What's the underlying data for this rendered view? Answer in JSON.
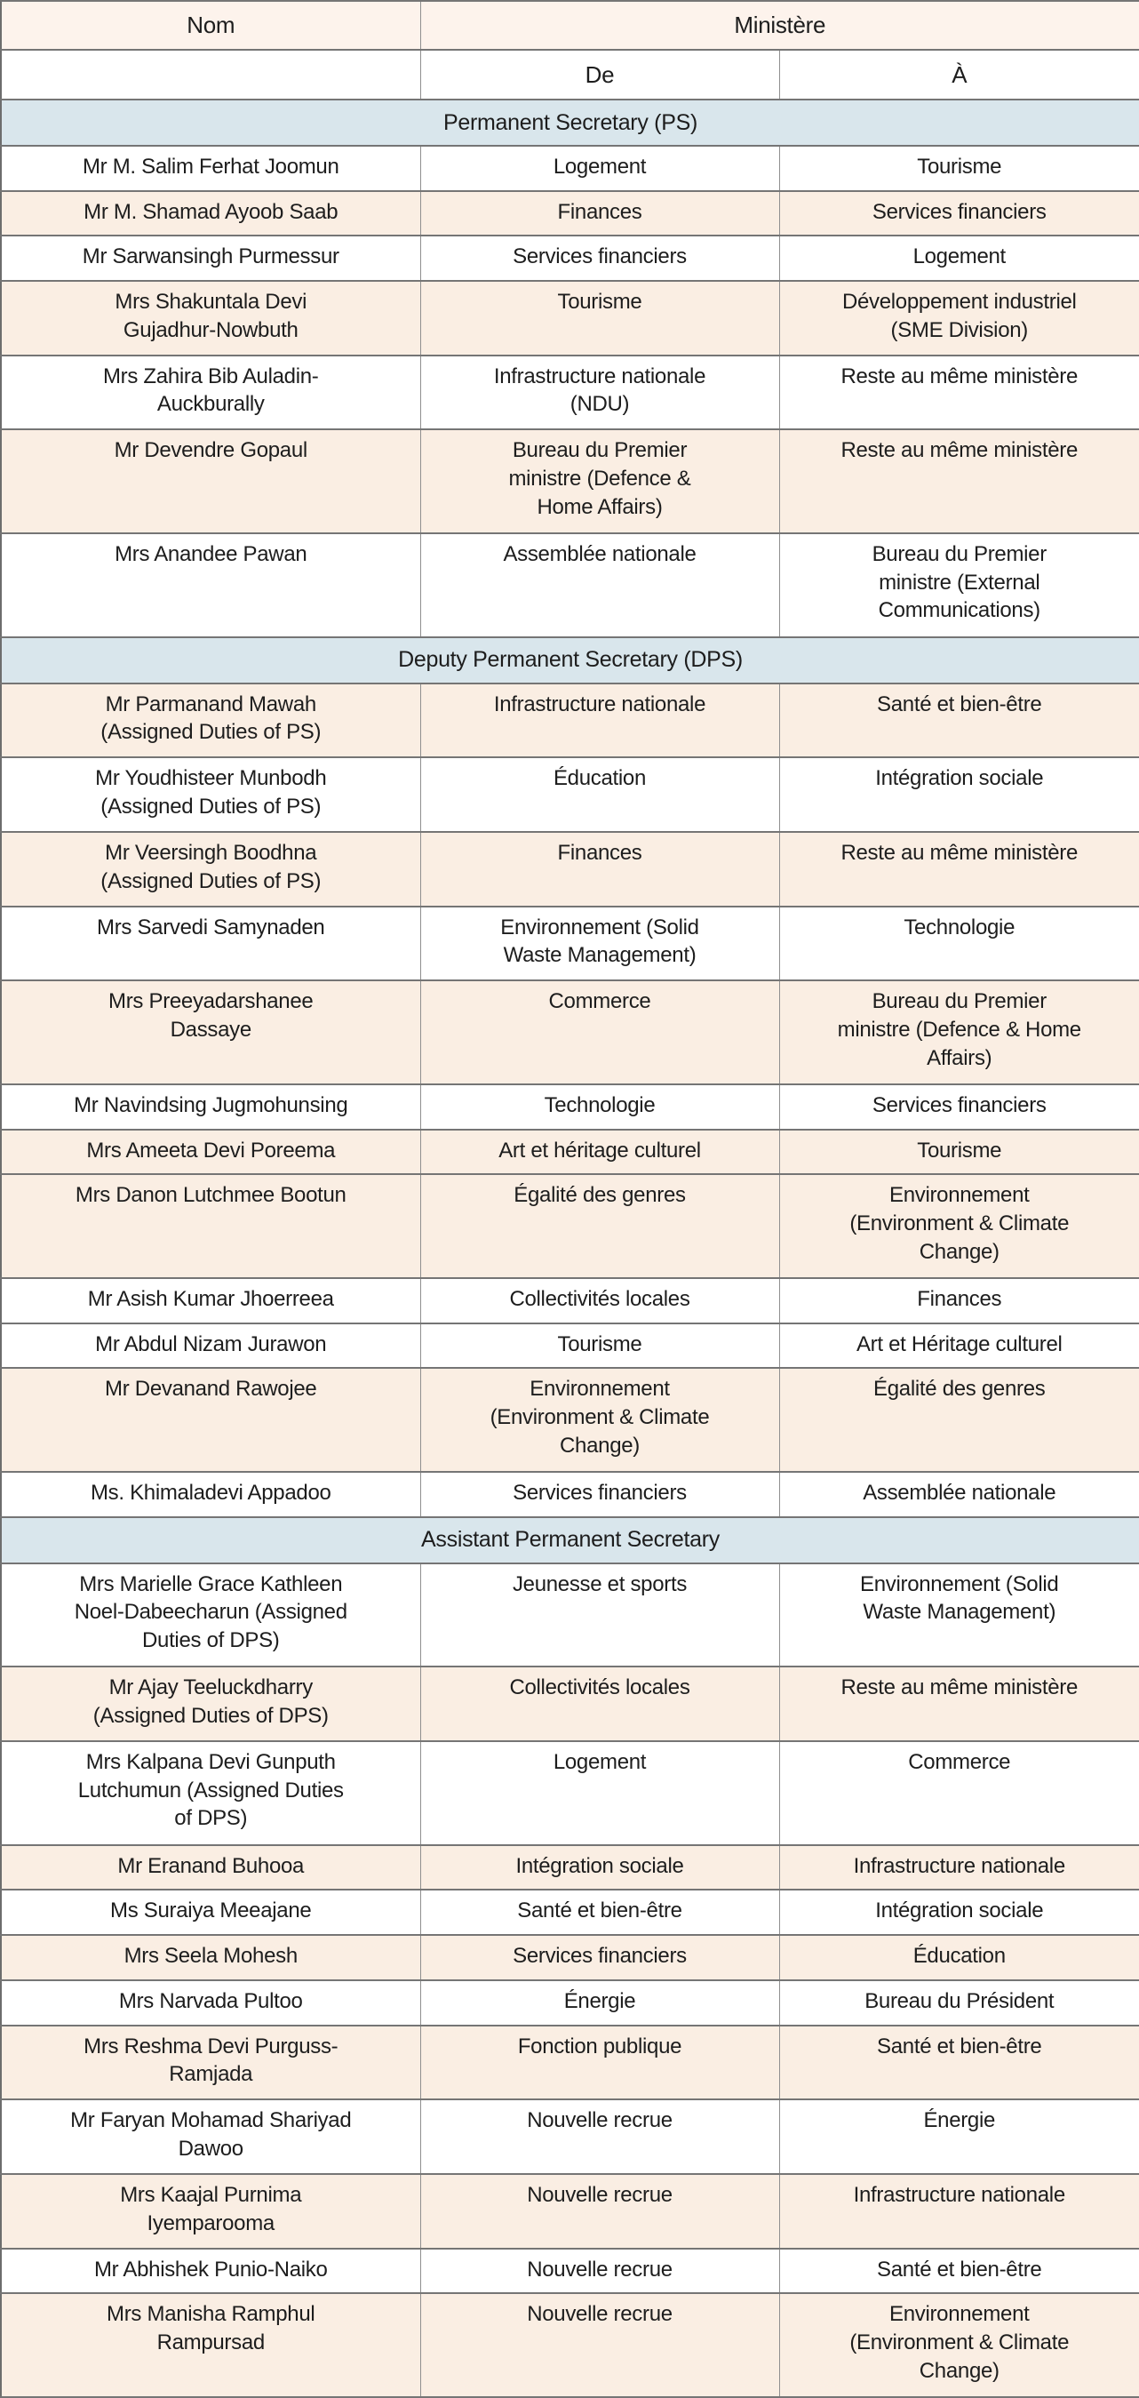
{
  "colors": {
    "header_bg": "#fdf3ec",
    "section_bg": "#d9e6ec",
    "row_shaded_bg": "#faeee3",
    "row_plain_bg": "#ffffff",
    "border_dark": "#757575",
    "border_light": "#8f8f8f",
    "text": "#1d1d1d"
  },
  "table": {
    "header": {
      "nom": "Nom",
      "ministere": "Ministère",
      "de": "De",
      "a": "À"
    },
    "sections": [
      {
        "title": "Permanent Secretary (PS)",
        "rows": [
          {
            "name": "Mr M. Salim Ferhat Joomun",
            "de": "Logement",
            "a": "Tourisme",
            "shaded": false
          },
          {
            "name": "Mr M. Shamad Ayoob Saab",
            "de": "Finances",
            "a": "Services financiers",
            "shaded": true
          },
          {
            "name": "Mr Sarwansingh Purmessur",
            "de": "Services financiers",
            "a": "Logement",
            "shaded": false
          },
          {
            "name": "Mrs Shakuntala Devi\nGujadhur-Nowbuth",
            "de": "Tourisme",
            "a": "Développement industriel\n(SME Division)",
            "shaded": true
          },
          {
            "name": "Mrs Zahira Bib Auladin-\nAuckburally",
            "de": "Infrastructure nationale\n(NDU)",
            "a": "Reste au même ministère",
            "shaded": false
          },
          {
            "name": "Mr Devendre Gopaul",
            "de": "Bureau du Premier\nministre (Defence &\nHome Affairs)",
            "a": "Reste au même ministère",
            "shaded": true
          },
          {
            "name": "Mrs Anandee Pawan",
            "de": "Assemblée nationale",
            "a": "Bureau du Premier\nministre (External\nCommunications)",
            "shaded": false
          }
        ]
      },
      {
        "title": "Deputy Permanent Secretary (DPS)",
        "rows": [
          {
            "name": "Mr Parmanand Mawah\n(Assigned Duties of PS)",
            "de": "Infrastructure nationale",
            "a": "Santé et bien-être",
            "shaded": true
          },
          {
            "name": "Mr Youdhisteer Munbodh\n(Assigned Duties of PS)",
            "de": "Éducation",
            "a": "Intégration sociale",
            "shaded": false
          },
          {
            "name": "Mr Veersingh Boodhna\n(Assigned Duties of PS)",
            "de": "Finances",
            "a": "Reste au même ministère",
            "shaded": true
          },
          {
            "name": "Mrs Sarvedi Samynaden",
            "de": "Environnement (Solid\nWaste Management)",
            "a": "Technologie",
            "shaded": false
          },
          {
            "name": "Mrs Preeyadarshanee\nDassaye",
            "de": "Commerce",
            "a": "Bureau du Premier\nministre (Defence & Home\nAffairs)",
            "shaded": true
          },
          {
            "name": "Mr Navindsing Jugmohunsing",
            "de": "Technologie",
            "a": "Services financiers",
            "shaded": false
          },
          {
            "name": "Mrs Ameeta Devi Poreema",
            "de": "Art et héritage culturel",
            "a": "Tourisme",
            "shaded": true
          },
          {
            "name": "Mrs Danon Lutchmee Bootun",
            "de": "Égalité des genres",
            "a": "Environnement\n(Environment & Climate\nChange)",
            "shaded": true
          },
          {
            "name": "Mr Asish Kumar Jhoerreea",
            "de": "Collectivités locales",
            "a": "Finances",
            "shaded": false
          },
          {
            "name": "Mr Abdul Nizam Jurawon",
            "de": "Tourisme",
            "a": "Art et Héritage culturel",
            "shaded": false
          },
          {
            "name": "Mr Devanand Rawojee",
            "de": "Environnement\n(Environment & Climate\nChange)",
            "a": "Égalité des genres",
            "shaded": true
          },
          {
            "name": "Ms. Khimaladevi Appadoo",
            "de": "Services financiers",
            "a": "Assemblée nationale",
            "shaded": false
          }
        ]
      },
      {
        "title": "Assistant Permanent Secretary",
        "rows": [
          {
            "name": "Mrs Marielle Grace Kathleen\nNoel-Dabeecharun (Assigned\nDuties of DPS)",
            "de": "Jeunesse et sports",
            "a": "Environnement (Solid\nWaste Management)",
            "shaded": false
          },
          {
            "name": "Mr Ajay Teeluckdharry\n(Assigned Duties of DPS)",
            "de": "Collectivités locales",
            "a": "Reste au même ministère",
            "shaded": true
          },
          {
            "name": "Mrs Kalpana Devi Gunputh\nLutchumun (Assigned Duties\nof DPS)",
            "de": "Logement",
            "a": "Commerce",
            "shaded": false
          },
          {
            "name": "Mr Eranand Buhooa",
            "de": "Intégration sociale",
            "a": "Infrastructure nationale",
            "shaded": true
          },
          {
            "name": "Ms Suraiya Meeajane",
            "de": "Santé et bien-être",
            "a": "Intégration sociale",
            "shaded": false
          },
          {
            "name": "Mrs Seela Mohesh",
            "de": "Services financiers",
            "a": "Éducation",
            "shaded": true
          },
          {
            "name": "Mrs Narvada Pultoo",
            "de": "Énergie",
            "a": "Bureau du Président",
            "shaded": false
          },
          {
            "name": "Mrs Reshma Devi Purguss-\nRamjada",
            "de": "Fonction publique",
            "a": "Santé et bien-être",
            "shaded": true
          },
          {
            "name": "Mr Faryan Mohamad Shariyad\nDawoo",
            "de": "Nouvelle recrue",
            "a": "Énergie",
            "shaded": false
          },
          {
            "name": "Mrs Kaajal Purnima\nIyemparooma",
            "de": "Nouvelle recrue",
            "a": "Infrastructure nationale",
            "shaded": true
          },
          {
            "name": "Mr Abhishek Punio-Naiko",
            "de": "Nouvelle recrue",
            "a": "Santé et bien-être",
            "shaded": false
          },
          {
            "name": "Mrs Manisha Ramphul\nRampursad",
            "de": "Nouvelle recrue",
            "a": "Environnement\n(Environment & Climate\nChange)",
            "shaded": true
          }
        ]
      }
    ]
  }
}
